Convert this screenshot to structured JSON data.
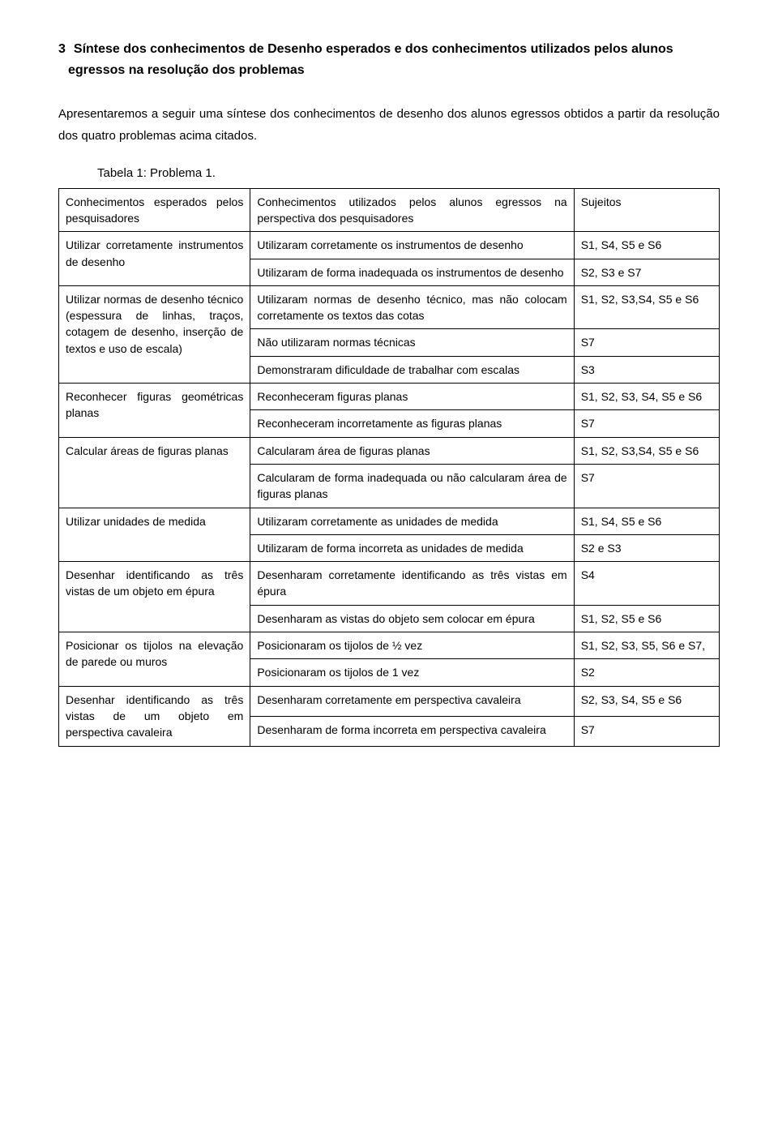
{
  "heading": {
    "number": "3",
    "text": "Síntese dos conhecimentos de Desenho esperados e dos conhecimentos utilizados pelos alunos egressos na resolução dos problemas"
  },
  "paragraph": "Apresentaremos a seguir uma síntese dos conhecimentos de desenho dos alunos egressos obtidos a partir da resolução dos quatro problemas acima citados.",
  "tableCaption": "Tabela 1: Problema 1.",
  "table": {
    "header": {
      "col1": "Conhecimentos esperados pelos pesquisadores",
      "col2": "Conhecimentos utilizados pelos alunos egressos na perspectiva dos pesquisadores",
      "col3": "Sujeitos"
    },
    "rows": [
      {
        "col1": "Utilizar corretamente instrumentos de desenho",
        "col1Span": 2,
        "col2": "Utilizaram corretamente os instrumentos de desenho",
        "col3": "S1, S4, S5 e S6"
      },
      {
        "col2": "Utilizaram de forma inadequada os instrumentos de desenho",
        "col3": "S2, S3 e S7"
      },
      {
        "col1": "Utilizar normas de desenho técnico (espessura de linhas, traços, cotagem de desenho, inserção de textos e uso de escala)",
        "col1Span": 3,
        "col2": "Utilizaram normas de desenho técnico, mas não colocam corretamente os textos das cotas",
        "col3": "S1, S2, S3,S4, S5 e S6"
      },
      {
        "col2": "Não utilizaram normas técnicas",
        "col3": "S7"
      },
      {
        "col2": "Demonstraram dificuldade de trabalhar com escalas",
        "col3": "S3"
      },
      {
        "col1": "Reconhecer figuras geométricas planas",
        "col1Span": 2,
        "col2": "Reconheceram figuras planas",
        "col3": "S1, S2, S3, S4, S5 e S6"
      },
      {
        "col2": "Reconheceram incorretamente as figuras planas",
        "col3": "S7"
      },
      {
        "col1": "Calcular áreas de figuras planas",
        "col1Span": 2,
        "col2": "Calcularam área de figuras planas",
        "col3": "S1, S2, S3,S4, S5 e S6"
      },
      {
        "col2": "Calcularam de forma inadequada ou não calcularam área de figuras planas",
        "col3": "S7"
      },
      {
        "col1": "Utilizar unidades de medida",
        "col1Span": 2,
        "col2": "Utilizaram corretamente as unidades de medida",
        "col3": "S1, S4, S5 e S6"
      },
      {
        "col2": "Utilizaram de forma incorreta as unidades de medida",
        "col3": "S2 e S3"
      },
      {
        "col1": "Desenhar identificando as três vistas de um objeto em épura",
        "col1Span": 2,
        "col2": "Desenharam corretamente identificando as três vistas em épura",
        "col3": "S4"
      },
      {
        "col2": "Desenharam as vistas do objeto sem colocar em épura",
        "col3": "S1, S2, S5 e S6"
      },
      {
        "col1": "Posicionar os tijolos na elevação de parede ou muros",
        "col1Span": 2,
        "col2": "Posicionaram os tijolos de ½ vez",
        "col3": "S1, S2, S3, S5, S6 e S7,"
      },
      {
        "col2": "Posicionaram os tijolos de 1 vez",
        "col3": "S2"
      },
      {
        "col1": "Desenhar identificando as três vistas de um objeto em perspectiva cavaleira",
        "col1Span": 2,
        "col2": "Desenharam corretamente em perspectiva cavaleira",
        "col3": "S2, S3, S4, S5 e S6"
      },
      {
        "col2": "Desenharam de forma incorreta em perspectiva cavaleira",
        "col3": "S7"
      }
    ]
  }
}
